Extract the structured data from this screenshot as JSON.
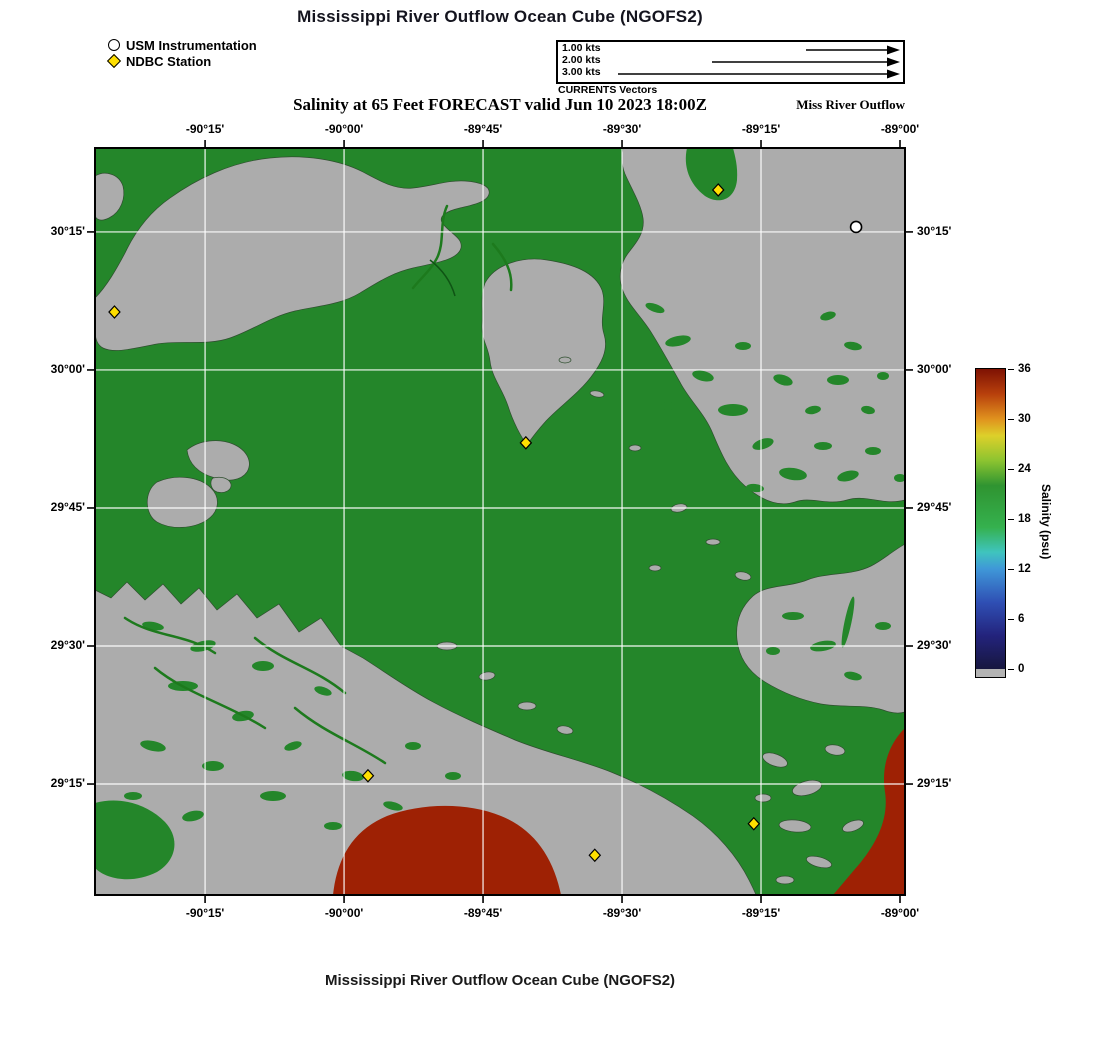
{
  "header": {
    "title": "Mississippi River Outflow Ocean Cube (NGOFS2)",
    "subtitle": "Salinity at 65 Feet FORECAST valid Jun 10 2023 18:00Z",
    "region_label": "Miss River Outflow"
  },
  "legend": {
    "items": [
      {
        "symbol": "usm-circle-icon",
        "label": "USM Instrumentation"
      },
      {
        "symbol": "ndbc-diamond-icon",
        "label": "NDBC Station"
      }
    ]
  },
  "vector_scale": {
    "caption": "CURRENTS Vectors",
    "rows": [
      {
        "label": "1.00 kts",
        "knots": 1
      },
      {
        "label": "2.00 kts",
        "knots": 2
      },
      {
        "label": "3.00 kts",
        "knots": 3
      }
    ]
  },
  "map": {
    "lon_min": -90.448,
    "lon_max": -88.991,
    "lat_min": 29.049,
    "lat_max": 30.402,
    "lon_ticks": [
      {
        "value": -90.25,
        "label": "-90°15'"
      },
      {
        "value": -90.0,
        "label": "-90°00'"
      },
      {
        "value": -89.75,
        "label": "-89°45'"
      },
      {
        "value": -89.5,
        "label": "-89°30'"
      },
      {
        "value": -89.25,
        "label": "-89°15'"
      },
      {
        "value": -89.0,
        "label": "-89°00'"
      }
    ],
    "lat_ticks": [
      {
        "value": 30.25,
        "label": "30°15'"
      },
      {
        "value": 30.0,
        "label": "30°00'"
      },
      {
        "value": 29.75,
        "label": "29°45'"
      },
      {
        "value": 29.5,
        "label": "29°30'"
      },
      {
        "value": 29.25,
        "label": "29°15'"
      }
    ],
    "stations": [
      {
        "type": "NDBC Station",
        "lon": -89.327,
        "lat": 30.326
      },
      {
        "type": "NDBC Station",
        "lon": -90.413,
        "lat": 30.105
      },
      {
        "type": "NDBC Station",
        "lon": -89.673,
        "lat": 29.868
      },
      {
        "type": "NDBC Station",
        "lon": -89.957,
        "lat": 29.265
      },
      {
        "type": "NDBC Station",
        "lon": -89.263,
        "lat": 29.178
      },
      {
        "type": "NDBC Station",
        "lon": -89.549,
        "lat": 29.121
      },
      {
        "type": "USM Instrumentation",
        "lon": -89.079,
        "lat": 30.259
      }
    ],
    "colors": {
      "water_salinity_green": "#24862a",
      "land_no_data": "#acacac",
      "high_salinity_red": "#9e2104",
      "grid": "#ffffff",
      "marker_yellow": "#ffdf00"
    }
  },
  "colorbar": {
    "title": "Salinity (psu)",
    "min": 0,
    "max": 36,
    "ticks": [
      0,
      6,
      12,
      18,
      24,
      30,
      36
    ],
    "stops": [
      {
        "value": 0,
        "color": "#17173f"
      },
      {
        "value": 4,
        "color": "#23237c"
      },
      {
        "value": 8,
        "color": "#2f4fb4"
      },
      {
        "value": 12,
        "color": "#3f97d8"
      },
      {
        "value": 14,
        "color": "#3fc4be"
      },
      {
        "value": 17,
        "color": "#35b14e"
      },
      {
        "value": 22,
        "color": "#2f9431"
      },
      {
        "value": 25,
        "color": "#8cc430"
      },
      {
        "value": 28,
        "color": "#ddd02a"
      },
      {
        "value": 30,
        "color": "#e0921e"
      },
      {
        "value": 33,
        "color": "#b8400c"
      },
      {
        "value": 36,
        "color": "#7e1203"
      }
    ]
  },
  "footer": {
    "title": "Mississippi River Outflow Ocean Cube (NGOFS2)"
  }
}
